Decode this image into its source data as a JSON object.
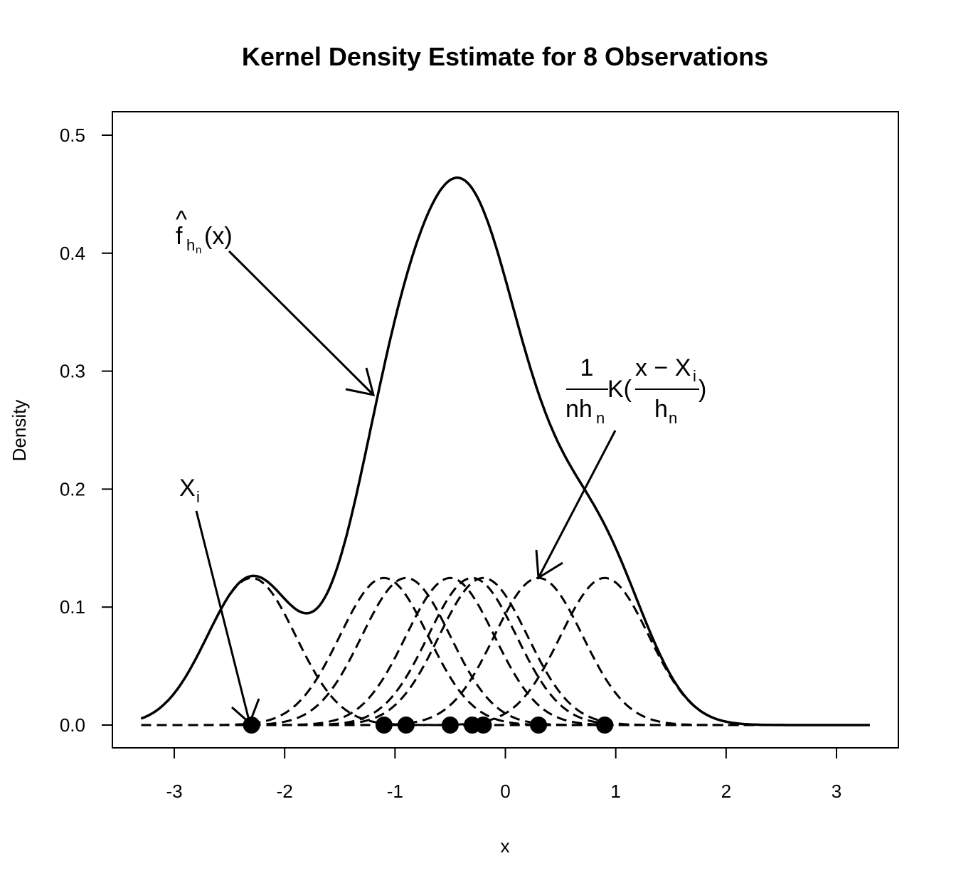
{
  "chart_data": {
    "type": "line",
    "title": "Kernel Density Estimate for 8 Observations",
    "xlabel": "x",
    "ylabel": "Density",
    "xlim": [
      -3.3,
      3.3
    ],
    "ylim": [
      0,
      0.5
    ],
    "x_ticks": [
      "-3",
      "-2",
      "-1",
      "0",
      "1",
      "2",
      "3"
    ],
    "y_ticks": [
      "0.0",
      "0.1",
      "0.2",
      "0.3",
      "0.4",
      "0.5"
    ],
    "observations": [
      -2.3,
      -1.1,
      -0.9,
      -0.5,
      -0.3,
      -0.2,
      0.3,
      0.9
    ],
    "bandwidth": 0.4,
    "kernel": "gaussian",
    "grid": false,
    "series": [
      {
        "style": "solid",
        "values_description_key": "kde"
      },
      {
        "style": "dashed",
        "values_description_key": "scaled_kernels"
      }
    ],
    "annotations": {
      "fhat": {
        "base": "f",
        "hat": "^",
        "sub": "h",
        "subsub": "n",
        "arg": "(x)"
      },
      "kernel_term": {
        "numerator": "1",
        "denominator": "nh",
        "denominator_sub": "n",
        "k": "K(",
        "inner_numerator": "x − X",
        "inner_numerator_sub": "i",
        "inner_denominator": "h",
        "inner_denominator_sub": "n",
        "close": ")"
      },
      "xi": {
        "base": "X",
        "sub": "i"
      }
    }
  }
}
